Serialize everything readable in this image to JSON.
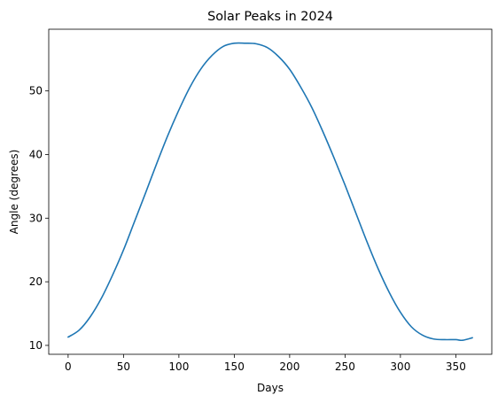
{
  "chart_data": {
    "type": "line",
    "title": "Solar Peaks in 2024",
    "xlabel": "Days",
    "ylabel": "Angle (degrees)",
    "xlim": [
      -17.5,
      382.5
    ],
    "ylim": [
      8.6,
      59.7
    ],
    "xticks": [
      0,
      50,
      100,
      150,
      200,
      250,
      300,
      350
    ],
    "yticks": [
      10,
      20,
      30,
      40,
      50
    ],
    "grid": false,
    "series": [
      {
        "color": "#1f77b4",
        "x": [
          0,
          10,
          20,
          30,
          40,
          50,
          60,
          70,
          80,
          90,
          100,
          110,
          120,
          130,
          140,
          150,
          160,
          170,
          180,
          190,
          200,
          210,
          220,
          230,
          240,
          250,
          260,
          270,
          280,
          290,
          300,
          310,
          320,
          330,
          340,
          350,
          356,
          365
        ],
        "y": [
          11.3,
          12.4,
          14.5,
          17.4,
          21.0,
          25.0,
          29.5,
          34.0,
          38.6,
          43.0,
          47.0,
          50.6,
          53.5,
          55.6,
          57.0,
          57.5,
          57.5,
          57.4,
          56.8,
          55.4,
          53.4,
          50.6,
          47.4,
          43.6,
          39.5,
          35.2,
          30.7,
          26.2,
          22.0,
          18.3,
          15.2,
          12.9,
          11.6,
          11.0,
          10.9,
          10.9,
          10.8,
          11.2
        ]
      }
    ]
  }
}
